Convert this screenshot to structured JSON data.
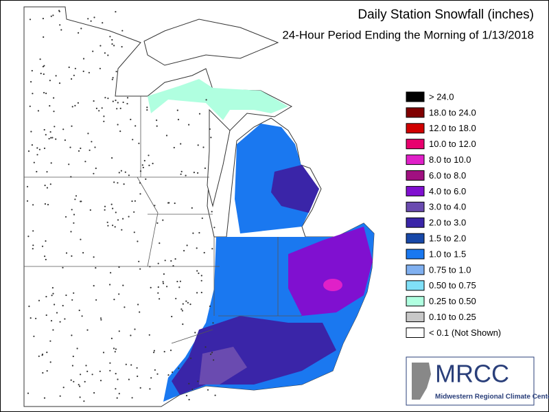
{
  "header": {
    "title": "Daily Station Snowfall (inches)",
    "subtitle": "24-Hour Period Ending the Morning of 1/13/2018"
  },
  "legend": {
    "items": [
      {
        "label": "> 24.0",
        "color": "#000000"
      },
      {
        "label": "18.0 to 24.0",
        "color": "#800000"
      },
      {
        "label": "12.0 to 18.0",
        "color": "#d00000"
      },
      {
        "label": "10.0 to 12.0",
        "color": "#e8006e"
      },
      {
        "label": "8.0 to 10.0",
        "color": "#e020c8"
      },
      {
        "label": "6.0 to 8.0",
        "color": "#a01080"
      },
      {
        "label": "4.0 to 6.0",
        "color": "#8010d0"
      },
      {
        "label": "3.0 to 4.0",
        "color": "#6a4bb0"
      },
      {
        "label": "2.0 to 3.0",
        "color": "#3a25a8"
      },
      {
        "label": "1.5 to 2.0",
        "color": "#1848a8"
      },
      {
        "label": "1.0 to 1.5",
        "color": "#1a78f0"
      },
      {
        "label": "0.75 to 1.0",
        "color": "#80b0f0"
      },
      {
        "label": "0.50 to 0.75",
        "color": "#80e0f8"
      },
      {
        "label": "0.25 to 0.50",
        "color": "#b0ffe0"
      },
      {
        "label": "0.10 to 0.25",
        "color": "#c8c8c8"
      },
      {
        "label": "< 0.1 (Not Shown)",
        "color": "#ffffff"
      }
    ]
  },
  "logo": {
    "name": "MRCC",
    "caption": "Midwestern Regional Climate Center"
  }
}
